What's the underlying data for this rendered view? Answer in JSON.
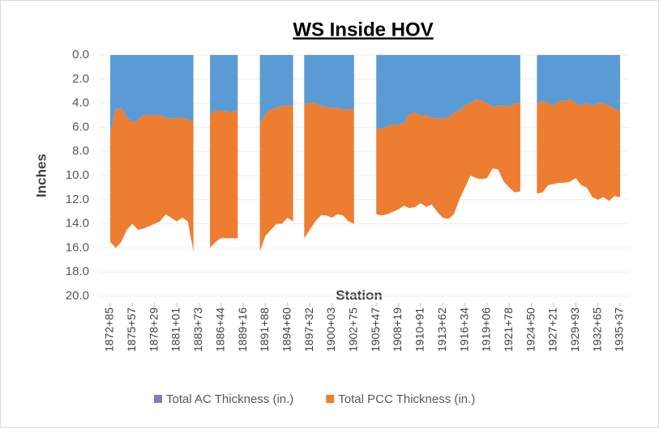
{
  "chart_data": {
    "type": "stacked_area",
    "title": "WS Inside HOV",
    "x_label": "Station",
    "y_label": "Inches",
    "y_inverted": true,
    "grid": true,
    "legend": "bottom",
    "categories": [
      "1872+85",
      null,
      null,
      null,
      "1875+57",
      null,
      null,
      null,
      "1878+29",
      null,
      null,
      null,
      "1881+01",
      null,
      null,
      null,
      "1883+73",
      null,
      null,
      null,
      "1886+44",
      null,
      null,
      null,
      "1889+16",
      null,
      null,
      null,
      "1891+88",
      null,
      null,
      null,
      "1894+60",
      null,
      null,
      null,
      "1897+32",
      null,
      null,
      null,
      "1900+03",
      null,
      null,
      null,
      "1902+75",
      null,
      null,
      null,
      "1905+47",
      null,
      null,
      null,
      "1908+19",
      null,
      null,
      null,
      "1910+91",
      null,
      null,
      null,
      "1913+62",
      null,
      null,
      null,
      "1916+34",
      null,
      null,
      null,
      "1919+06",
      null,
      null,
      null,
      "1921+78",
      null,
      null,
      null,
      "1924+50",
      null,
      null,
      null,
      "1927+21",
      null,
      null,
      null,
      "1929+93",
      null,
      null,
      null,
      "1932+65",
      null,
      null,
      null,
      "1935+37"
    ],
    "series": [
      {
        "name": "Total AC Thickness (in.)",
        "color": "#5b9bd5",
        "values": [
          6.5,
          4.5,
          4.4,
          5.2,
          5.6,
          5.4,
          5.0,
          5.0,
          5.0,
          5.0,
          5.2,
          5.3,
          5.2,
          5.2,
          5.4,
          5.4,
          null,
          null,
          5.0,
          4.6,
          4.6,
          4.7,
          4.7,
          4.6,
          null,
          null,
          null,
          5.8,
          4.9,
          4.5,
          4.4,
          4.2,
          4.2,
          4.2,
          null,
          4.0,
          4.0,
          4.0,
          4.2,
          4.3,
          4.4,
          4.4,
          4.5,
          4.5,
          4.5,
          null,
          null,
          null,
          6.1,
          6.1,
          5.9,
          5.8,
          5.8,
          5.6,
          4.9,
          4.8,
          5.0,
          5.0,
          5.2,
          5.3,
          5.2,
          5.2,
          4.8,
          4.6,
          4.2,
          4.0,
          3.7,
          3.8,
          4.0,
          4.3,
          4.2,
          4.2,
          4.3,
          4.0,
          4.0,
          null,
          null,
          4.0,
          3.8,
          4.0,
          4.2,
          3.8,
          3.8,
          3.7,
          4.0,
          4.2,
          4.0,
          4.2,
          4.0,
          4.0,
          4.2,
          4.5,
          4.6
        ]
      },
      {
        "name": "Total PCC Thickness (in.)",
        "color": "#ed7d31",
        "values": [
          9.0,
          11.5,
          11.1,
          9.3,
          8.4,
          9.1,
          9.4,
          9.2,
          9.0,
          8.8,
          8.0,
          8.2,
          8.6,
          8.3,
          8.4,
          10.9,
          null,
          null,
          11.0,
          10.9,
          10.6,
          10.5,
          10.5,
          10.6,
          null,
          null,
          null,
          10.5,
          10.1,
          10.0,
          9.6,
          9.8,
          9.3,
          9.6,
          null,
          11.2,
          10.5,
          9.8,
          9.1,
          9.0,
          9.1,
          8.8,
          8.8,
          9.3,
          9.5,
          null,
          null,
          null,
          7.1,
          7.2,
          7.3,
          7.2,
          7.0,
          6.9,
          7.8,
          7.8,
          7.3,
          7.6,
          7.2,
          7.7,
          8.3,
          8.4,
          8.4,
          7.4,
          6.8,
          6.0,
          6.5,
          6.5,
          6.2,
          5.1,
          5.3,
          6.3,
          6.7,
          7.4,
          7.3,
          null,
          null,
          7.5,
          7.6,
          6.8,
          6.5,
          6.8,
          6.8,
          6.8,
          6.2,
          6.6,
          7.0,
          7.6,
          8.0,
          7.8,
          7.9,
          7.2,
          7.2
        ]
      }
    ],
    "ylim": [
      0,
      20
    ],
    "yticks": [
      {
        "value": 0,
        "label": "0.0"
      },
      {
        "value": 2,
        "label": "2.0"
      },
      {
        "value": 4,
        "label": "4.0"
      },
      {
        "value": 6,
        "label": "6.0"
      },
      {
        "value": 8,
        "label": "8.0"
      },
      {
        "value": 10,
        "label": "10.0"
      },
      {
        "value": 12,
        "label": "12.0"
      },
      {
        "value": 14,
        "label": "14.0"
      },
      {
        "value": 16,
        "label": "16.0"
      },
      {
        "value": 18,
        "label": "18.0"
      },
      {
        "value": 20,
        "label": "20.0"
      }
    ]
  }
}
